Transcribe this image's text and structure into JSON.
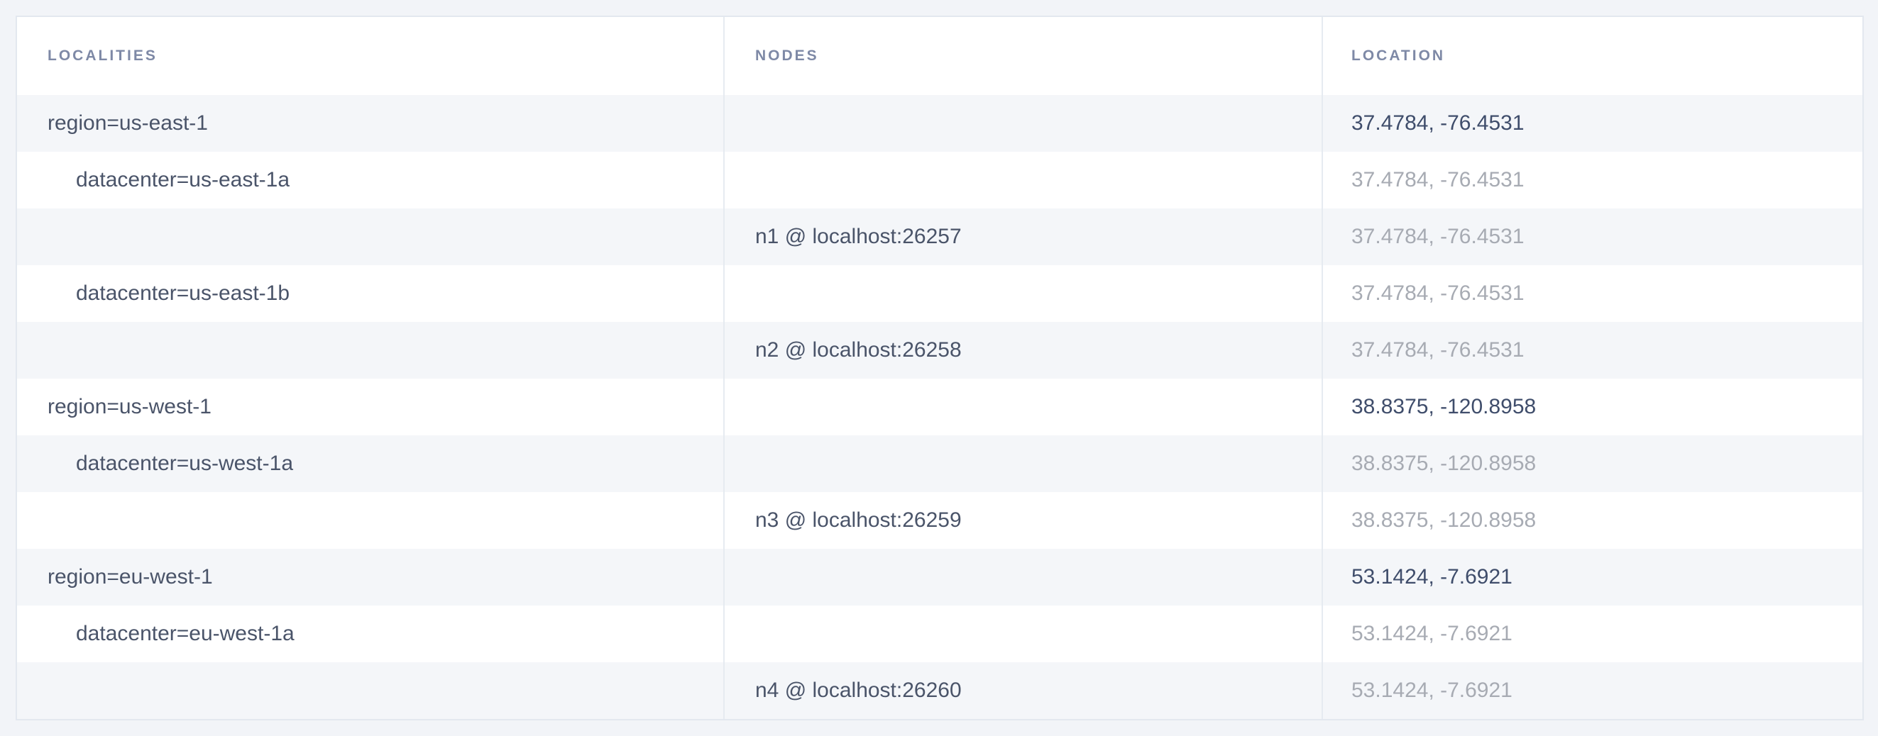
{
  "report": {
    "name": "localities-report"
  },
  "table": {
    "columns": [
      {
        "key": "localities",
        "label": "LOCALITIES"
      },
      {
        "key": "nodes",
        "label": "NODES"
      },
      {
        "key": "location",
        "label": "LOCATION"
      }
    ],
    "rows": [
      {
        "type": "locality",
        "depth": 0,
        "locality": "region=us-east-1",
        "node": "",
        "location": "37.4784, -76.4531",
        "location_style": "dark"
      },
      {
        "type": "locality",
        "depth": 1,
        "locality": "datacenter=us-east-1a",
        "node": "",
        "location": "37.4784, -76.4531",
        "location_style": "muted"
      },
      {
        "type": "node",
        "depth": 0,
        "locality": "",
        "node": "n1 @ localhost:26257",
        "location": "37.4784, -76.4531",
        "location_style": "muted"
      },
      {
        "type": "locality",
        "depth": 1,
        "locality": "datacenter=us-east-1b",
        "node": "",
        "location": "37.4784, -76.4531",
        "location_style": "muted"
      },
      {
        "type": "node",
        "depth": 0,
        "locality": "",
        "node": "n2 @ localhost:26258",
        "location": "37.4784, -76.4531",
        "location_style": "muted"
      },
      {
        "type": "locality",
        "depth": 0,
        "locality": "region=us-west-1",
        "node": "",
        "location": "38.8375, -120.8958",
        "location_style": "dark"
      },
      {
        "type": "locality",
        "depth": 1,
        "locality": "datacenter=us-west-1a",
        "node": "",
        "location": "38.8375, -120.8958",
        "location_style": "muted"
      },
      {
        "type": "node",
        "depth": 0,
        "locality": "",
        "node": "n3 @ localhost:26259",
        "location": "38.8375, -120.8958",
        "location_style": "muted"
      },
      {
        "type": "locality",
        "depth": 0,
        "locality": "region=eu-west-1",
        "node": "",
        "location": "53.1424, -7.6921",
        "location_style": "dark"
      },
      {
        "type": "locality",
        "depth": 1,
        "locality": "datacenter=eu-west-1a",
        "node": "",
        "location": "53.1424, -7.6921",
        "location_style": "muted"
      },
      {
        "type": "node",
        "depth": 0,
        "locality": "",
        "node": "n4 @ localhost:26260",
        "location": "53.1424, -7.6921",
        "location_style": "muted"
      }
    ]
  },
  "colors": {
    "page_bg": "#f2f4f8",
    "table_bg": "#ffffff",
    "stripe_bg": "#f4f6f9",
    "border": "#e3e8ef",
    "divider": "#e6ebf1",
    "header_text": "#7e89a6",
    "text_dark": "#4a5469",
    "location_dark": "#3f4d6b",
    "location_muted": "#a7abb3"
  }
}
